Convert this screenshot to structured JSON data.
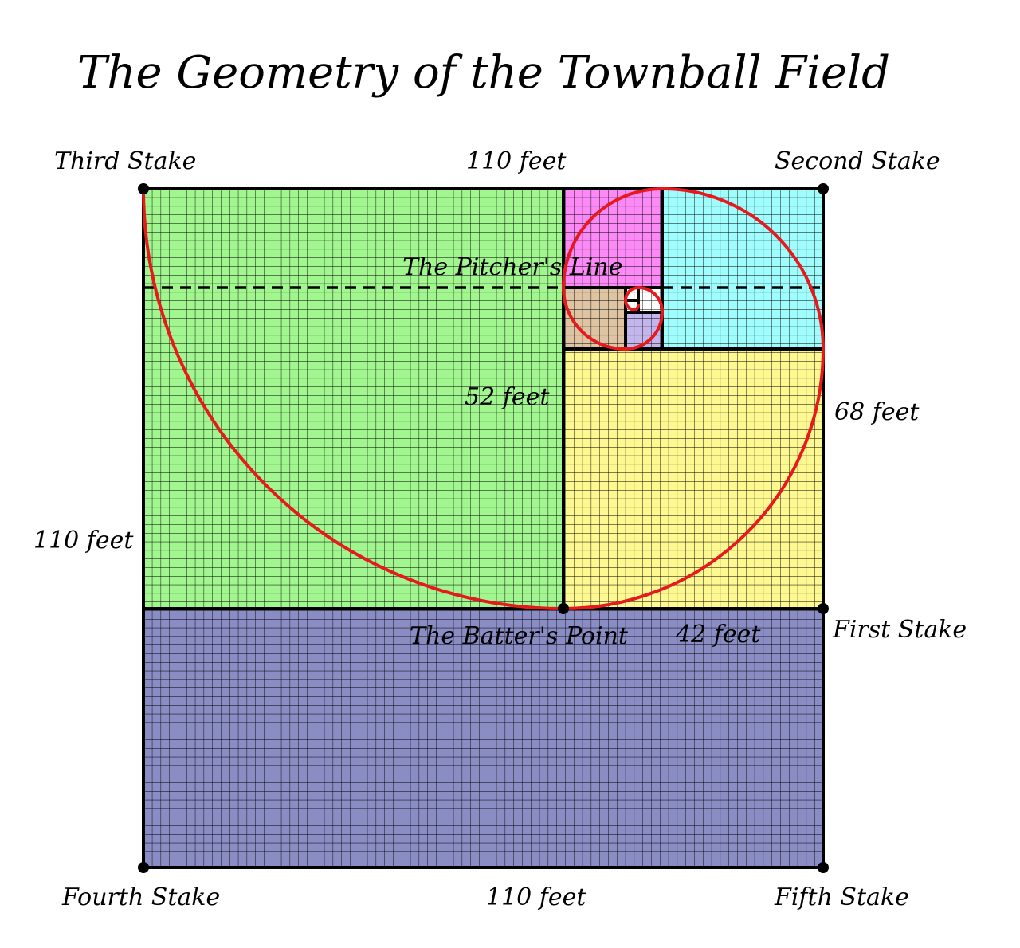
{
  "title": "The Geometry of the Townball Field",
  "labels": {
    "third_stake": "Third Stake",
    "second_stake": "Second Stake",
    "first_stake": "First Stake",
    "fourth_stake": "Fourth Stake",
    "fifth_stake": "Fifth Stake",
    "top_side": "110 feet",
    "left_side": "110 feet",
    "bottom_side": "110 feet",
    "right_upper": "68 feet",
    "inner_52": "52 feet",
    "inner_42": "42 feet",
    "pitchers_line": "The Pitcher's Line",
    "batters_point": "The Batter's Point"
  },
  "colors": {
    "green_region": "#a1f68f",
    "purple_region": "#8a8cc4",
    "yellow_region": "#fdf890",
    "cyan_region": "#9ffdfd",
    "magenta_region": "#fb89f6",
    "tan_region": "#dfc4a3",
    "lavender_region": "#c3b6ec",
    "spiral": "#e8191c",
    "lines": "#000000"
  }
}
